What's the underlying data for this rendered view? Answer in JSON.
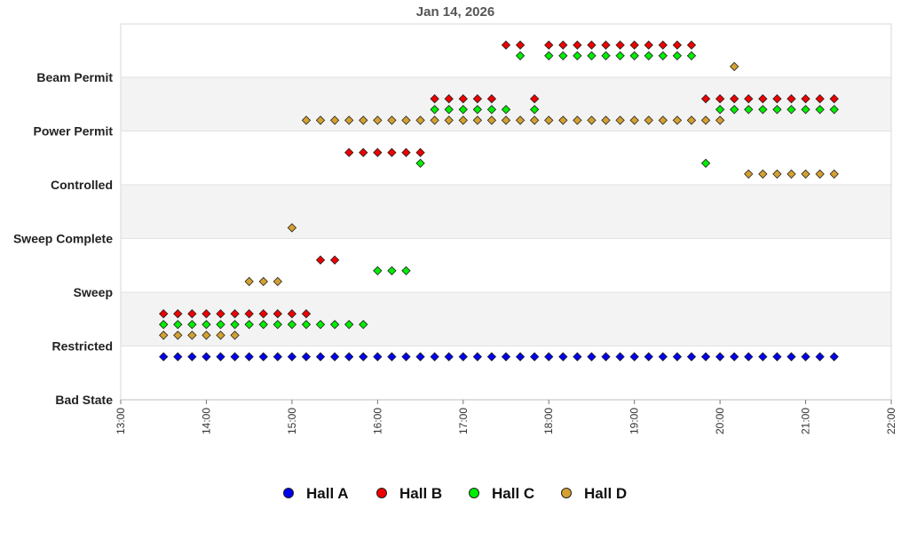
{
  "chart_data": {
    "type": "scatter",
    "title": "Jan 14, 2026",
    "xlabel": "",
    "ylabel": "",
    "x_unit": "time of day (hours)",
    "xlim": [
      13,
      22
    ],
    "x_ticks": [
      13,
      14,
      15,
      16,
      17,
      18,
      19,
      20,
      21,
      22
    ],
    "x_tick_labels": [
      "13:00",
      "14:00",
      "15:00",
      "16:00",
      "17:00",
      "18:00",
      "19:00",
      "20:00",
      "21:00",
      "22:00"
    ],
    "y_categories": [
      "Bad State",
      "Restricted",
      "Sweep",
      "Sweep Complete",
      "Controlled",
      "Power Permit",
      "Beam Permit"
    ],
    "y_offset_note": "",
    "grid": "alternating horizontal bands",
    "legend_position": "bottom",
    "series": [
      {
        "name": "Hall A",
        "color": "#0000ee",
        "segments": [
          {
            "state": "Restricted",
            "offset": -0.2,
            "x": [
              13.5,
              13.6667,
              13.8333,
              14.0,
              14.1667,
              14.3333,
              14.5,
              14.6667,
              14.8333,
              15.0,
              15.1667,
              15.3333,
              15.5,
              15.6667,
              15.8333,
              16.0,
              16.1667,
              16.3333,
              16.5,
              16.6667,
              16.8333,
              17.0,
              17.1667,
              17.3333,
              17.5,
              17.6667,
              17.8333,
              18.0,
              18.1667,
              18.3333,
              18.5,
              18.6667,
              18.8333,
              19.0,
              19.1667,
              19.3333,
              19.5,
              19.6667,
              19.8333,
              20.0,
              20.1667,
              20.3333,
              20.5,
              20.6667,
              20.8333,
              21.0,
              21.1667,
              21.3333
            ]
          }
        ]
      },
      {
        "name": "Hall B",
        "color": "#ee0000",
        "segments": [
          {
            "state": "Restricted",
            "offset": 0.6,
            "x": [
              13.5,
              13.6667,
              13.8333,
              14.0,
              14.1667,
              14.3333,
              14.5,
              14.6667,
              14.8333,
              15.0,
              15.1667
            ]
          },
          {
            "state": "Sweep",
            "offset": 0.6,
            "x": [
              15.3333,
              15.5
            ]
          },
          {
            "state": "Controlled",
            "offset": 0.6,
            "x": [
              15.6667,
              15.8333,
              16.0,
              16.1667,
              16.3333,
              16.5
            ]
          },
          {
            "state": "Power Permit",
            "offset": 0.6,
            "x": [
              16.6667,
              16.8333,
              17.0,
              17.1667,
              17.3333
            ]
          },
          {
            "state": "Beam Permit",
            "offset": 0.6,
            "x": [
              17.5,
              17.6667
            ]
          },
          {
            "state": "Power Permit",
            "offset": 0.6,
            "x": [
              17.8333
            ]
          },
          {
            "state": "Beam Permit",
            "offset": 0.6,
            "x": [
              18.0,
              18.1667,
              18.3333,
              18.5,
              18.6667,
              18.8333,
              19.0,
              19.1667,
              19.3333,
              19.5,
              19.6667
            ]
          },
          {
            "state": "Power Permit",
            "offset": 0.6,
            "x": [
              19.8333,
              20.0,
              20.1667,
              20.3333,
              20.5,
              20.6667,
              20.8333,
              21.0,
              21.1667,
              21.3333
            ]
          }
        ]
      },
      {
        "name": "Hall C",
        "color": "#00ee00",
        "segments": [
          {
            "state": "Restricted",
            "offset": 0.4,
            "x": [
              13.5,
              13.6667,
              13.8333,
              14.0,
              14.1667,
              14.3333,
              14.5,
              14.6667,
              14.8333,
              15.0,
              15.1667,
              15.3333,
              15.5,
              15.6667,
              15.8333
            ]
          },
          {
            "state": "Sweep",
            "offset": 0.4,
            "x": [
              16.0,
              16.1667,
              16.3333
            ]
          },
          {
            "state": "Controlled",
            "offset": 0.4,
            "x": [
              16.5
            ]
          },
          {
            "state": "Power Permit",
            "offset": 0.4,
            "x": [
              16.6667,
              16.8333,
              17.0,
              17.1667,
              17.3333,
              17.5
            ]
          },
          {
            "state": "Beam Permit",
            "offset": 0.4,
            "x": [
              17.6667
            ]
          },
          {
            "state": "Power Permit",
            "offset": 0.4,
            "x": [
              17.8333
            ]
          },
          {
            "state": "Beam Permit",
            "offset": 0.4,
            "x": [
              18.0,
              18.1667,
              18.3333,
              18.5,
              18.6667,
              18.8333,
              19.0,
              19.1667,
              19.3333,
              19.5,
              19.6667
            ]
          },
          {
            "state": "Controlled",
            "offset": 0.4,
            "x": [
              19.8333
            ]
          },
          {
            "state": "Power Permit",
            "offset": 0.4,
            "x": [
              20.0,
              20.1667,
              20.3333,
              20.5,
              20.6667,
              20.8333,
              21.0,
              21.1667,
              21.3333
            ]
          }
        ]
      },
      {
        "name": "Hall D",
        "color": "#d4a030",
        "segments": [
          {
            "state": "Restricted",
            "offset": 0.2,
            "x": [
              13.5,
              13.6667,
              13.8333,
              14.0,
              14.1667,
              14.3333
            ]
          },
          {
            "state": "Sweep",
            "offset": 0.2,
            "x": [
              14.5,
              14.6667,
              14.8333
            ]
          },
          {
            "state": "Sweep Complete",
            "offset": 0.2,
            "x": [
              15.0
            ]
          },
          {
            "state": "Power Permit",
            "offset": 0.2,
            "x": [
              15.1667,
              15.3333,
              15.5,
              15.6667,
              15.8333,
              16.0,
              16.1667,
              16.3333,
              16.5,
              16.6667,
              16.8333,
              17.0,
              17.1667,
              17.3333,
              17.5,
              17.6667,
              17.8333,
              18.0,
              18.1667,
              18.3333,
              18.5,
              18.6667,
              18.8333,
              19.0,
              19.1667,
              19.3333,
              19.5,
              19.6667,
              19.8333,
              20.0
            ]
          },
          {
            "state": "Beam Permit",
            "offset": 0.2,
            "x": [
              20.1667
            ]
          },
          {
            "state": "Controlled",
            "offset": 0.2,
            "x": [
              20.3333,
              20.5,
              20.6667,
              20.8333,
              21.0,
              21.1667,
              21.3333
            ]
          }
        ]
      }
    ]
  }
}
